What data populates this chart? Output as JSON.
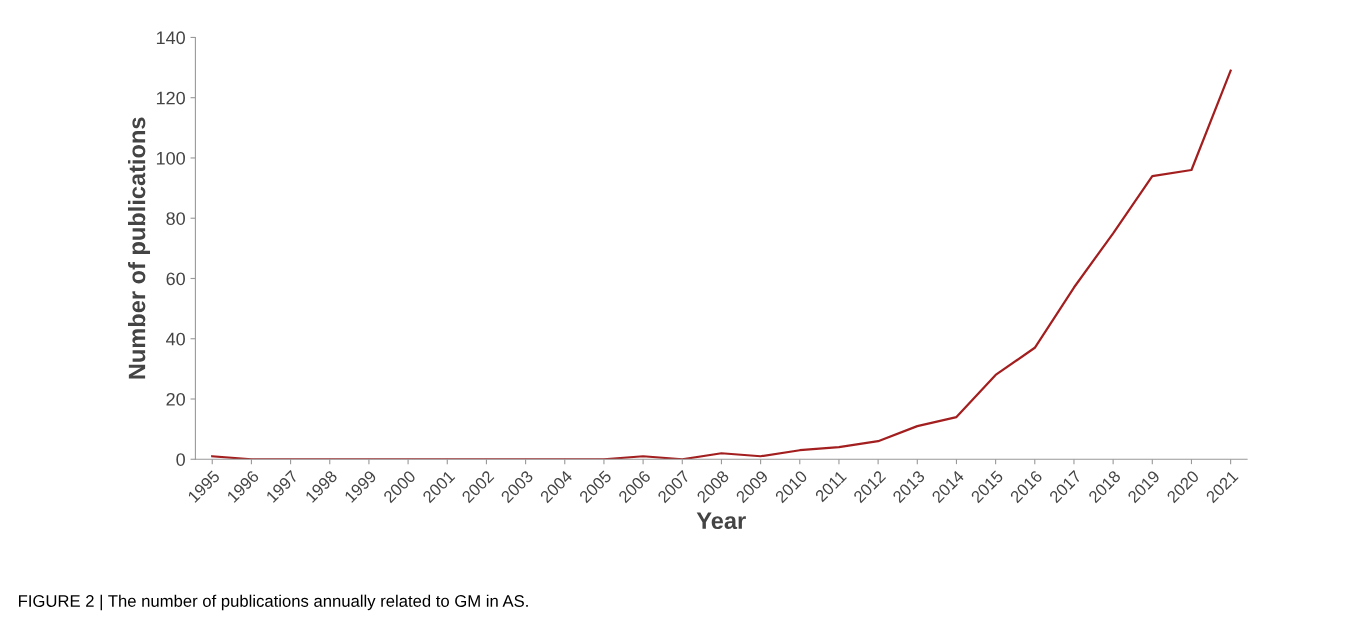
{
  "chart_data": {
    "type": "line",
    "xlabel": "Year",
    "ylabel": "Number of publications",
    "categories": [
      "1995",
      "1996",
      "1997",
      "1998",
      "1999",
      "2000",
      "2001",
      "2002",
      "2003",
      "2004",
      "2005",
      "2006",
      "2007",
      "2008",
      "2009",
      "2010",
      "2011",
      "2012",
      "2013",
      "2014",
      "2015",
      "2016",
      "2017",
      "2018",
      "2019",
      "2020",
      "2021"
    ],
    "series": [
      {
        "color": "#a31f1f",
        "values": [
          1,
          0,
          0,
          0,
          0,
          0,
          0,
          0,
          0,
          0,
          0,
          1,
          0,
          2,
          1,
          3,
          4,
          6,
          11,
          14,
          28,
          37,
          57,
          75,
          94,
          96,
          129
        ]
      }
    ],
    "ylim": [
      0,
      140
    ],
    "yticks": [
      0,
      20,
      40,
      60,
      80,
      100,
      120,
      140
    ],
    "grid": false,
    "legend": false,
    "marker": "none",
    "line_style": "solid",
    "annotations": [
      "FIGURE 2 | The number of publications annually related to GM in AS."
    ]
  }
}
